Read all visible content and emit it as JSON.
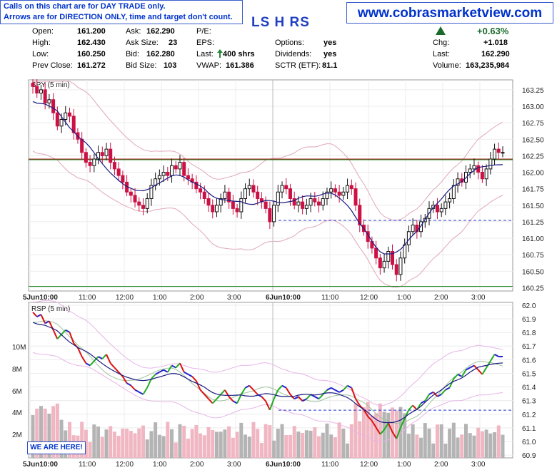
{
  "note": {
    "line1": "Calls on this chart are for DAY TRADE only.",
    "line2": "Arrows are for DIRECTION ONLY, time and target don't count."
  },
  "site": "www.cobrasmarketview.com",
  "symbol": "LS H RS",
  "quote": {
    "open_label": "Open:",
    "open": "161.200",
    "high_label": "High:",
    "high": "162.430",
    "low_label": "Low:",
    "low": "160.250",
    "prev_label": "Prev Close:",
    "prev": "161.272",
    "ask_label": "Ask:",
    "ask": "162.290",
    "asksize_label": "Ask Size:",
    "asksize": "23",
    "bid_label": "Bid:",
    "bid": "162.280",
    "bidsize_label": "Bid Size:",
    "bidsize": "103",
    "pe_label": "P/E:",
    "eps_label": "EPS:",
    "last_label": "Last:",
    "last_shrs": "400 shrs",
    "vwap_label": "VWAP:",
    "vwap": "161.386",
    "options_label": "Options:",
    "options": "yes",
    "div_label": "Dividends:",
    "div": "yes",
    "sctr_label": "SCTR (ETF):",
    "sctr": "81.1",
    "pct": "+0.63%",
    "chg_label": "Chg:",
    "chg": "+1.018",
    "last2_label": "Last:",
    "last2": "162.290",
    "vol_label": "Volume:",
    "vol": "163,235,984"
  },
  "badge": "WE ARE HERE!",
  "colors": {
    "up": "#111111",
    "down": "#cc1144",
    "ma": "#1a1a80",
    "band": "#e0a8b8",
    "support": "#228822",
    "resistance": "#aa2222",
    "dashed": "#2233cc"
  },
  "chart_data": [
    {
      "type": "candlestick",
      "title": "SPY (5 min)",
      "x_ticks": [
        "5Jun10:00",
        "11:00",
        "12:00",
        "1:00",
        "2:00",
        "3:00",
        "6Jun10:00",
        "11:00",
        "12:00",
        "1:00",
        "2:00",
        "3:00"
      ],
      "y_ticks": [
        "163.25",
        "163.00",
        "162.75",
        "162.50",
        "162.25",
        "162.00",
        "161.75",
        "161.50",
        "161.25",
        "161.00",
        "160.75",
        "160.50",
        "160.25"
      ],
      "ylim": [
        160.2,
        163.4
      ],
      "hlines": {
        "resistance": 162.2,
        "support": 160.27,
        "dashed": 161.27
      },
      "closes": [
        163.3,
        163.2,
        163.25,
        163.05,
        163.1,
        162.9,
        162.7,
        162.8,
        162.9,
        162.85,
        162.6,
        162.5,
        162.3,
        162.15,
        162.1,
        162.2,
        162.3,
        162.25,
        162.35,
        162.15,
        162.05,
        161.95,
        161.85,
        161.7,
        161.65,
        161.55,
        161.5,
        161.45,
        161.6,
        161.8,
        161.9,
        161.95,
        162.0,
        161.95,
        162.1,
        162.05,
        162.15,
        161.95,
        161.9,
        161.85,
        161.75,
        161.7,
        161.6,
        161.5,
        161.4,
        161.5,
        161.6,
        161.7,
        161.55,
        161.45,
        161.4,
        161.6,
        161.75,
        161.8,
        161.7,
        161.6,
        161.55,
        161.45,
        161.25,
        161.5,
        161.7,
        161.8,
        161.75,
        161.6,
        161.5,
        161.55,
        161.45,
        161.5,
        161.6,
        161.55,
        161.5,
        161.6,
        161.7,
        161.75,
        161.7,
        161.65,
        161.7,
        161.8,
        161.75,
        161.5,
        161.2,
        161.1,
        160.95,
        160.85,
        160.7,
        160.55,
        160.65,
        160.8,
        160.6,
        160.45,
        160.7,
        160.9,
        161.1,
        161.2,
        161.1,
        161.25,
        161.3,
        161.45,
        161.5,
        161.4,
        161.45,
        161.55,
        161.6,
        161.8,
        161.9,
        161.85,
        162.0,
        162.05,
        162.1,
        162.0,
        161.9,
        162.05,
        162.2,
        162.35,
        162.3,
        162.3
      ]
    },
    {
      "type": "line",
      "title": "RSP (5 min)",
      "x_ticks": [
        "5Jun10:00",
        "11:00",
        "12:00",
        "1:00",
        "2:00",
        "3:00",
        "6Jun10:00",
        "11:00",
        "12:00",
        "1:00",
        "2:00",
        "3:00"
      ],
      "y_ticks": [
        "62.0",
        "61.9",
        "61.8",
        "61.7",
        "61.6",
        "61.5",
        "61.4",
        "61.3",
        "61.2",
        "61.1",
        "61.0",
        "60.9"
      ],
      "volume_ticks": [
        "10M",
        "8M",
        "6M",
        "4M",
        "2M"
      ],
      "ylim": [
        60.88,
        62.02
      ],
      "hlines": {
        "dashed": 61.23
      }
    }
  ]
}
